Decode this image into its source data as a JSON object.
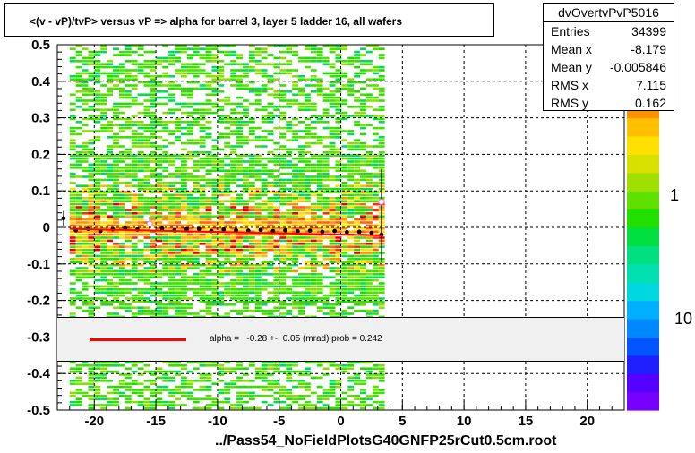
{
  "title": "<(v - vP)/tvP> versus   vP => alpha for barrel 3, layer 5 ladder 16, all wafers",
  "stats": {
    "name": "dvOvertvPvP5016",
    "rows": [
      {
        "label": "Entries",
        "value": "34399"
      },
      {
        "label": "Mean x",
        "value": "-8.179"
      },
      {
        "label": "Mean y",
        "value": "-0.005846"
      },
      {
        "label": "RMS x",
        "value": "7.115"
      },
      {
        "label": "RMS y",
        "value": "0.162"
      }
    ]
  },
  "fit": {
    "text": "alpha =   -0.28 +-  0.05 (mrad) prob = 0.242",
    "line_color": "#ff0000"
  },
  "x_axis_title": "../Pass54_NoFieldPlotsG40GNFP25rCut0.5cm.root",
  "chart_data": {
    "type": "heatmap",
    "xlim": [
      -23,
      23
    ],
    "ylim": [
      -0.5,
      0.5
    ],
    "x_ticks": [
      -20,
      -15,
      -10,
      -5,
      0,
      5,
      10,
      15,
      20
    ],
    "y_ticks": [
      -0.5,
      -0.4,
      -0.3,
      -0.2,
      -0.1,
      0,
      0.1,
      0.2,
      0.3,
      0.4,
      0.5
    ],
    "y_tick_labels": [
      "-0.5",
      "-0.4",
      "-0.3",
      "-0.2",
      "-0.1",
      "0",
      "0.1",
      "0.2",
      "0.3",
      "0.4",
      "0.5"
    ],
    "data_x_range": [
      -22,
      3.3
    ],
    "color_scale_labels": [
      "1",
      "10"
    ],
    "grid": true,
    "profile_points": [
      {
        "x": -22.5,
        "y": 0.025,
        "err": 0.02
      },
      {
        "x": -21.5,
        "y": -0.008
      },
      {
        "x": -20.5,
        "y": -0.004
      },
      {
        "x": -19.5,
        "y": -0.01
      },
      {
        "x": -18.5,
        "y": -0.005
      },
      {
        "x": -17.5,
        "y": -0.002
      },
      {
        "x": -16.5,
        "y": -0.006
      },
      {
        "x": -15.5,
        "y": 0.01,
        "err": 0.02
      },
      {
        "x": -14.5,
        "y": -0.003
      },
      {
        "x": -13.5,
        "y": -0.008
      },
      {
        "x": -12.5,
        "y": -0.005
      },
      {
        "x": -11.5,
        "y": -0.004
      },
      {
        "x": -10.5,
        "y": -0.01
      },
      {
        "x": -9.5,
        "y": -0.006
      },
      {
        "x": -8.5,
        "y": -0.008
      },
      {
        "x": -7.5,
        "y": -0.009
      },
      {
        "x": -6.5,
        "y": -0.007
      },
      {
        "x": -5.5,
        "y": -0.01
      },
      {
        "x": -4.5,
        "y": -0.008
      },
      {
        "x": -3.5,
        "y": -0.011
      },
      {
        "x": -2.5,
        "y": -0.009
      },
      {
        "x": -1.5,
        "y": -0.012
      },
      {
        "x": -0.5,
        "y": -0.01
      },
      {
        "x": 0.5,
        "y": -0.013
      },
      {
        "x": 1.5,
        "y": -0.012
      },
      {
        "x": 2.5,
        "y": -0.015
      },
      {
        "x": 3.3,
        "y": -0.02,
        "err": 0.075
      },
      {
        "x": 3.3,
        "y": 0.07,
        "err": 0.09
      }
    ],
    "fit_line": {
      "x": [
        -22,
        3.3
      ],
      "y": [
        -0.004,
        -0.022
      ],
      "color": "#ff0000"
    }
  }
}
